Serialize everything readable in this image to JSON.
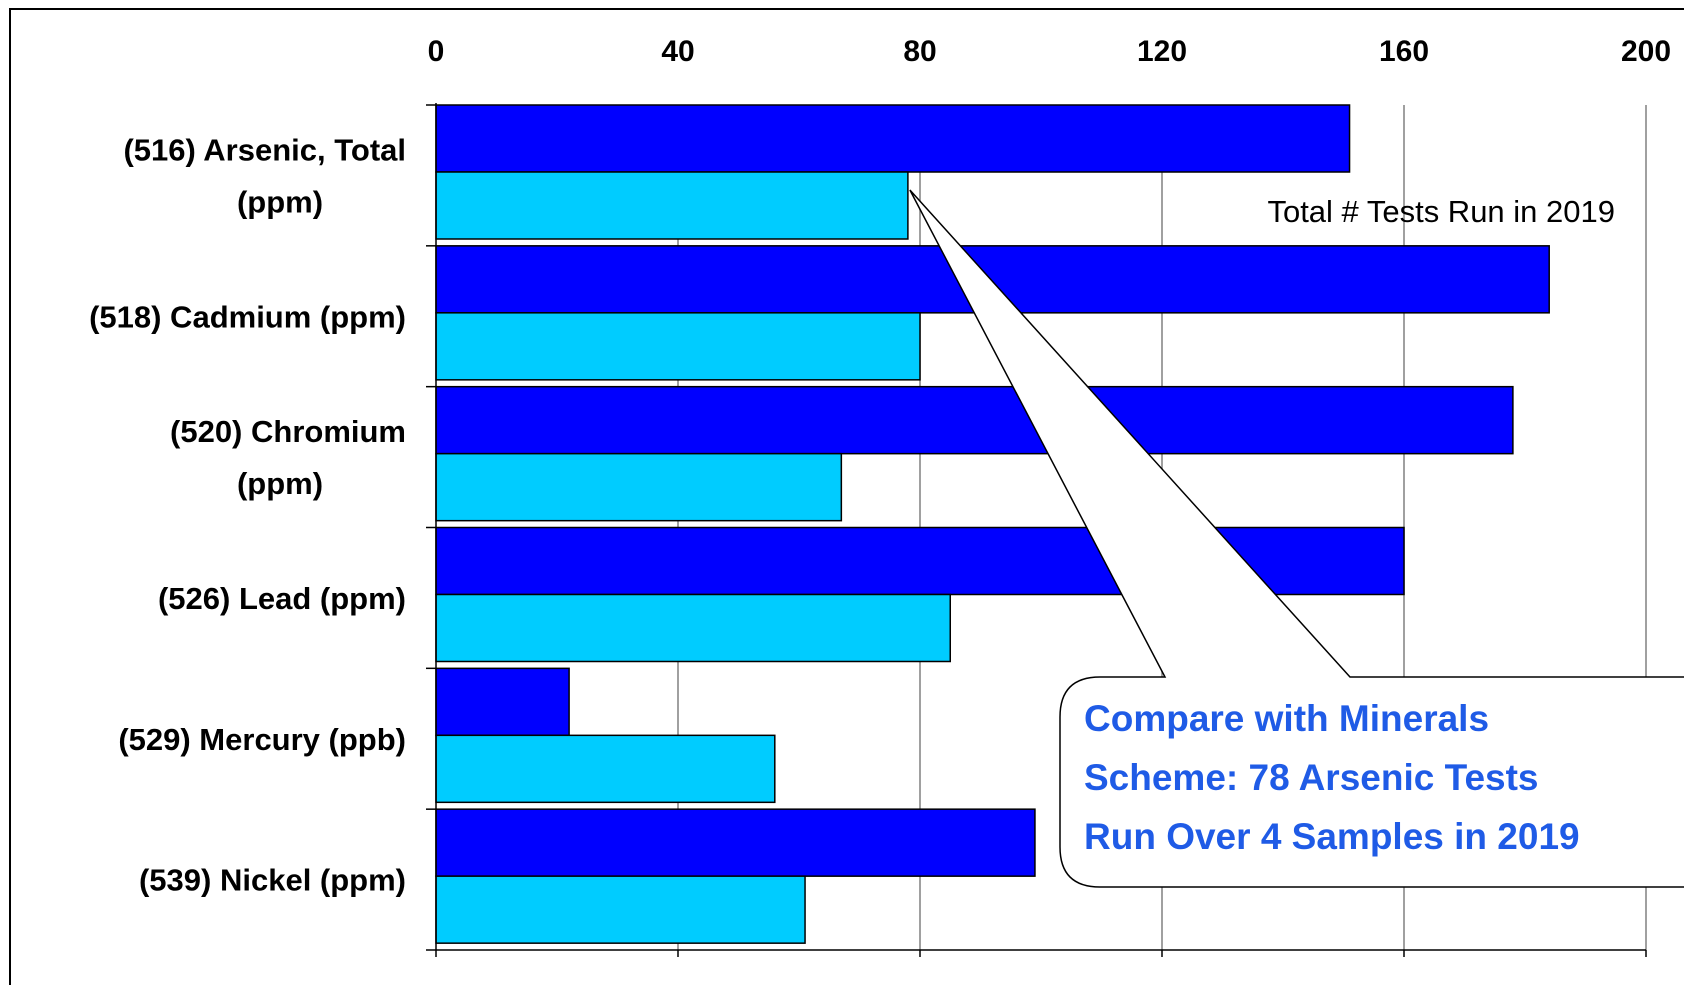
{
  "chart_data": {
    "type": "bar",
    "orientation": "horizontal",
    "categories": [
      [
        "(516)  Arsenic, Total",
        "(ppm)"
      ],
      [
        "(518)  Cadmium (ppm)"
      ],
      [
        "(520)  Chromium",
        "(ppm)"
      ],
      [
        "(526)  Lead (ppm)"
      ],
      [
        "(529)  Mercury (ppb)"
      ],
      [
        "(539)  Nickel (ppm)"
      ]
    ],
    "series": [
      {
        "values": [
          151,
          184,
          178,
          160,
          22,
          99
        ],
        "color": "#0000ff"
      },
      {
        "name": "Total # Tests Run in 2019",
        "values": [
          78,
          80,
          67,
          85,
          56,
          61
        ],
        "color": "#00ccff"
      }
    ],
    "xlim": [
      0,
      200
    ],
    "xticks": [
      "0",
      "40",
      "80",
      "120",
      "160",
      "200"
    ],
    "xtick_values": [
      0,
      40,
      80,
      120,
      160,
      200
    ],
    "x_axis_position": "top",
    "grid": true,
    "legend_placement": "top-right, inside plot",
    "callout": {
      "lines": [
        "Compare with Minerals",
        "Scheme: 78 Arsenic Tests",
        "Run Over 4 Samples in 2019"
      ],
      "points_to": {
        "category_index": 0,
        "series_index": 1,
        "value": 78
      }
    },
    "title": "",
    "xlabel": "",
    "ylabel": ""
  }
}
